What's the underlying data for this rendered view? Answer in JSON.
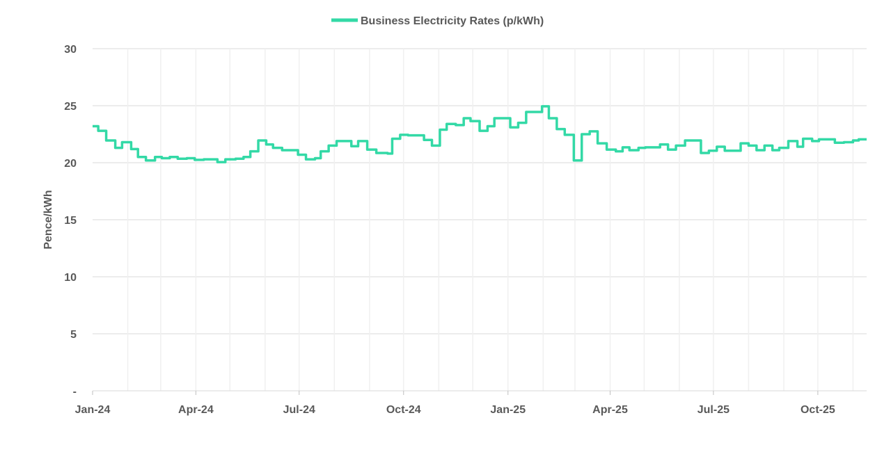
{
  "chart_data": {
    "type": "line",
    "title": "",
    "xlabel": "",
    "ylabel": "Pence/kWh",
    "ylim": [
      0,
      30
    ],
    "xlim": [
      "2024-01-01",
      "2025-11-13"
    ],
    "yticks": [
      0,
      5,
      10,
      15,
      20,
      25,
      30
    ],
    "ytick_labels": [
      "-",
      "5",
      "10",
      "15",
      "20",
      "25",
      "30"
    ],
    "xticks": [
      "2024-01-01",
      "2024-04-01",
      "2024-07-01",
      "2024-10-01",
      "2025-01-01",
      "2025-04-01",
      "2025-07-01",
      "2025-10-01"
    ],
    "xtick_labels": [
      "Jan-24",
      "Apr-24",
      "Jul-24",
      "Oct-24",
      "Jan-25",
      "Apr-25",
      "Jul-25",
      "Oct-25"
    ],
    "grid": "monthly vertical and horizontal",
    "legend_position": "top-center",
    "line_style": "step",
    "series": [
      {
        "name": "Business Electricity Rates (p/kWh)",
        "color": "#33D9A6",
        "points": [
          [
            "2024-01-01",
            23.2
          ],
          [
            "2024-01-06",
            22.8
          ],
          [
            "2024-01-13",
            21.95
          ],
          [
            "2024-01-21",
            21.3
          ],
          [
            "2024-01-27",
            21.8
          ],
          [
            "2024-02-04",
            21.2
          ],
          [
            "2024-02-10",
            20.5
          ],
          [
            "2024-02-17",
            20.2
          ],
          [
            "2024-02-25",
            20.5
          ],
          [
            "2024-03-02",
            20.4
          ],
          [
            "2024-03-09",
            20.5
          ],
          [
            "2024-03-16",
            20.35
          ],
          [
            "2024-03-24",
            20.4
          ],
          [
            "2024-03-31",
            20.25
          ],
          [
            "2024-04-08",
            20.3
          ],
          [
            "2024-04-20",
            20.05
          ],
          [
            "2024-04-27",
            20.3
          ],
          [
            "2024-05-06",
            20.35
          ],
          [
            "2024-05-13",
            20.5
          ],
          [
            "2024-05-19",
            21.0
          ],
          [
            "2024-05-26",
            21.95
          ],
          [
            "2024-06-02",
            21.6
          ],
          [
            "2024-06-08",
            21.3
          ],
          [
            "2024-06-16",
            21.1
          ],
          [
            "2024-06-30",
            20.7
          ],
          [
            "2024-07-07",
            20.3
          ],
          [
            "2024-07-15",
            20.4
          ],
          [
            "2024-07-20",
            21.0
          ],
          [
            "2024-07-27",
            21.5
          ],
          [
            "2024-08-03",
            21.9
          ],
          [
            "2024-08-16",
            21.45
          ],
          [
            "2024-08-22",
            21.9
          ],
          [
            "2024-08-30",
            21.15
          ],
          [
            "2024-09-07",
            20.85
          ],
          [
            "2024-09-17",
            20.8
          ],
          [
            "2024-09-21",
            22.1
          ],
          [
            "2024-09-28",
            22.45
          ],
          [
            "2024-10-05",
            22.4
          ],
          [
            "2024-10-19",
            22.0
          ],
          [
            "2024-10-26",
            21.5
          ],
          [
            "2024-11-02",
            22.9
          ],
          [
            "2024-11-08",
            23.4
          ],
          [
            "2024-11-16",
            23.3
          ],
          [
            "2024-11-23",
            23.9
          ],
          [
            "2024-11-29",
            23.65
          ],
          [
            "2024-12-07",
            22.8
          ],
          [
            "2024-12-14",
            23.2
          ],
          [
            "2024-12-20",
            23.9
          ],
          [
            "2025-01-03",
            23.1
          ],
          [
            "2025-01-10",
            23.5
          ],
          [
            "2025-01-17",
            24.45
          ],
          [
            "2025-01-31",
            24.95
          ],
          [
            "2025-02-06",
            23.9
          ],
          [
            "2025-02-13",
            22.95
          ],
          [
            "2025-02-20",
            22.45
          ],
          [
            "2025-02-28",
            20.2
          ],
          [
            "2025-03-07",
            22.5
          ],
          [
            "2025-03-14",
            22.75
          ],
          [
            "2025-03-21",
            21.7
          ],
          [
            "2025-03-29",
            21.15
          ],
          [
            "2025-04-06",
            21.0
          ],
          [
            "2025-04-12",
            21.35
          ],
          [
            "2025-04-18",
            21.1
          ],
          [
            "2025-04-26",
            21.3
          ],
          [
            "2025-05-02",
            21.35
          ],
          [
            "2025-05-15",
            21.6
          ],
          [
            "2025-05-22",
            21.15
          ],
          [
            "2025-05-29",
            21.5
          ],
          [
            "2025-06-06",
            21.95
          ],
          [
            "2025-06-20",
            20.85
          ],
          [
            "2025-06-27",
            21.05
          ],
          [
            "2025-07-04",
            21.4
          ],
          [
            "2025-07-11",
            21.05
          ],
          [
            "2025-07-25",
            21.7
          ],
          [
            "2025-08-01",
            21.5
          ],
          [
            "2025-08-08",
            21.1
          ],
          [
            "2025-08-15",
            21.5
          ],
          [
            "2025-08-22",
            21.1
          ],
          [
            "2025-08-28",
            21.3
          ],
          [
            "2025-09-05",
            21.9
          ],
          [
            "2025-09-13",
            21.4
          ],
          [
            "2025-09-18",
            22.1
          ],
          [
            "2025-09-26",
            21.9
          ],
          [
            "2025-10-02",
            22.05
          ],
          [
            "2025-10-16",
            21.75
          ],
          [
            "2025-10-24",
            21.8
          ],
          [
            "2025-11-01",
            21.95
          ],
          [
            "2025-11-06",
            22.05
          ],
          [
            "2025-11-13",
            22.05
          ]
        ]
      }
    ]
  }
}
